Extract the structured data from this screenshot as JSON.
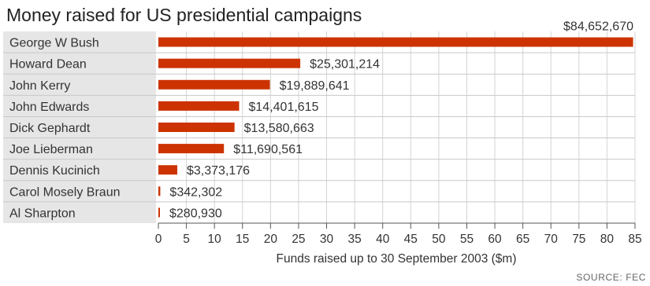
{
  "title": "Money raised for US presidential campaigns",
  "source": "SOURCE: FEC",
  "colors": {
    "bar": "#cc3300",
    "grid": "#d4d4d4",
    "row_divider": "#c8c8c8",
    "axis": "#555555",
    "label_bg": "#e6e6e6"
  },
  "chart_data": {
    "type": "bar",
    "orientation": "horizontal",
    "title": "Money raised for US presidential campaigns",
    "xlabel": "Funds raised up to 30 September 2003 ($m)",
    "ylabel": "",
    "xlim": [
      0,
      85
    ],
    "xticks": [
      0,
      5,
      10,
      15,
      20,
      25,
      30,
      35,
      40,
      45,
      50,
      55,
      60,
      65,
      70,
      75,
      80,
      85
    ],
    "grid": true,
    "categories": [
      "George W Bush",
      "Howard Dean",
      "John Kerry",
      "John Edwards",
      "Dick Gephardt",
      "Joe Lieberman",
      "Dennis Kucinich",
      "Carol Mosely Braun",
      "Al Sharpton"
    ],
    "values": [
      84.65267,
      25.301214,
      19.889641,
      14.401615,
      13.580663,
      11.690561,
      3.373176,
      0.342302,
      0.28093
    ],
    "data_labels": [
      "$84,652,670",
      "$25,301,214",
      "$19,889,641",
      "$14,401,615",
      "$13,580,663",
      "$11,690,561",
      "$3,373,176",
      "$342,302",
      "$280,930"
    ],
    "source": "SOURCE: FEC"
  }
}
